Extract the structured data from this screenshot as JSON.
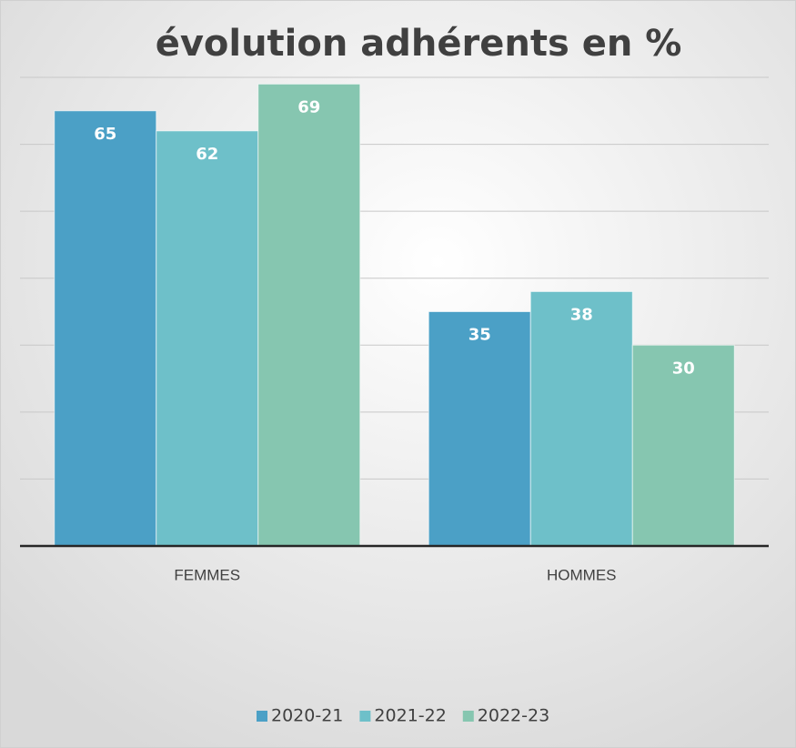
{
  "chart_data": {
    "type": "bar",
    "title": "évolution adhérents en %",
    "categories": [
      "FEMMES",
      "HOMMES"
    ],
    "series": [
      {
        "name": "2020-21",
        "color": "#4ba0c6",
        "values": [
          65,
          35
        ]
      },
      {
        "name": "2021-22",
        "color": "#6ec0c9",
        "values": [
          62,
          38
        ]
      },
      {
        "name": "2022-23",
        "color": "#86c6b0",
        "values": [
          69,
          30
        ]
      }
    ],
    "ylim": [
      0,
      70
    ],
    "yticks": [
      0,
      10,
      20,
      30,
      40,
      50,
      60,
      70
    ],
    "grid": true,
    "legend": "bottom"
  }
}
